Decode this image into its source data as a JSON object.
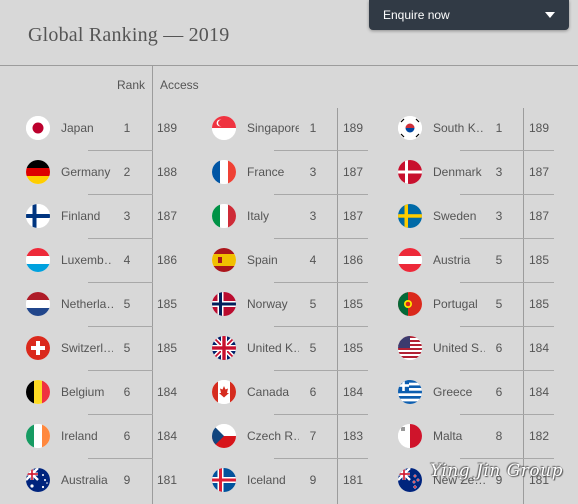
{
  "header": {
    "title": "Global Ranking — 2019",
    "enquire_label": "Enquire now"
  },
  "columns": {
    "rank": "Rank",
    "access": "Access"
  },
  "watermark": "Ying Jin Group",
  "countries": [
    {
      "name": "Japan",
      "rank": "1",
      "access": "189",
      "flag": "japan"
    },
    {
      "name": "Singapore",
      "rank": "1",
      "access": "189",
      "flag": "singapore"
    },
    {
      "name": "South K…",
      "rank": "1",
      "access": "189",
      "flag": "south-korea"
    },
    {
      "name": "Germany",
      "rank": "2",
      "access": "188",
      "flag": "germany"
    },
    {
      "name": "France",
      "rank": "3",
      "access": "187",
      "flag": "france"
    },
    {
      "name": "Denmark",
      "rank": "3",
      "access": "187",
      "flag": "denmark"
    },
    {
      "name": "Finland",
      "rank": "3",
      "access": "187",
      "flag": "finland"
    },
    {
      "name": "Italy",
      "rank": "3",
      "access": "187",
      "flag": "italy"
    },
    {
      "name": "Sweden",
      "rank": "3",
      "access": "187",
      "flag": "sweden"
    },
    {
      "name": "Luxemb…",
      "rank": "4",
      "access": "186",
      "flag": "luxembourg"
    },
    {
      "name": "Spain",
      "rank": "4",
      "access": "186",
      "flag": "spain"
    },
    {
      "name": "Austria",
      "rank": "5",
      "access": "185",
      "flag": "austria"
    },
    {
      "name": "Netherla…",
      "rank": "5",
      "access": "185",
      "flag": "netherlands"
    },
    {
      "name": "Norway",
      "rank": "5",
      "access": "185",
      "flag": "norway"
    },
    {
      "name": "Portugal",
      "rank": "5",
      "access": "185",
      "flag": "portugal"
    },
    {
      "name": "Switzerl…",
      "rank": "5",
      "access": "185",
      "flag": "switzerland"
    },
    {
      "name": "United K…",
      "rank": "5",
      "access": "185",
      "flag": "united-kingdom"
    },
    {
      "name": "United S…",
      "rank": "6",
      "access": "184",
      "flag": "united-states"
    },
    {
      "name": "Belgium",
      "rank": "6",
      "access": "184",
      "flag": "belgium"
    },
    {
      "name": "Canada",
      "rank": "6",
      "access": "184",
      "flag": "canada"
    },
    {
      "name": "Greece",
      "rank": "6",
      "access": "184",
      "flag": "greece"
    },
    {
      "name": "Ireland",
      "rank": "6",
      "access": "184",
      "flag": "ireland"
    },
    {
      "name": "Czech R…",
      "rank": "7",
      "access": "183",
      "flag": "czech-republic"
    },
    {
      "name": "Malta",
      "rank": "8",
      "access": "182",
      "flag": "malta"
    },
    {
      "name": "Australia",
      "rank": "9",
      "access": "181",
      "flag": "australia"
    },
    {
      "name": "Iceland",
      "rank": "9",
      "access": "181",
      "flag": "iceland"
    },
    {
      "name": "New Ze…",
      "rank": "9",
      "access": "181",
      "flag": "new-zealand"
    }
  ]
}
